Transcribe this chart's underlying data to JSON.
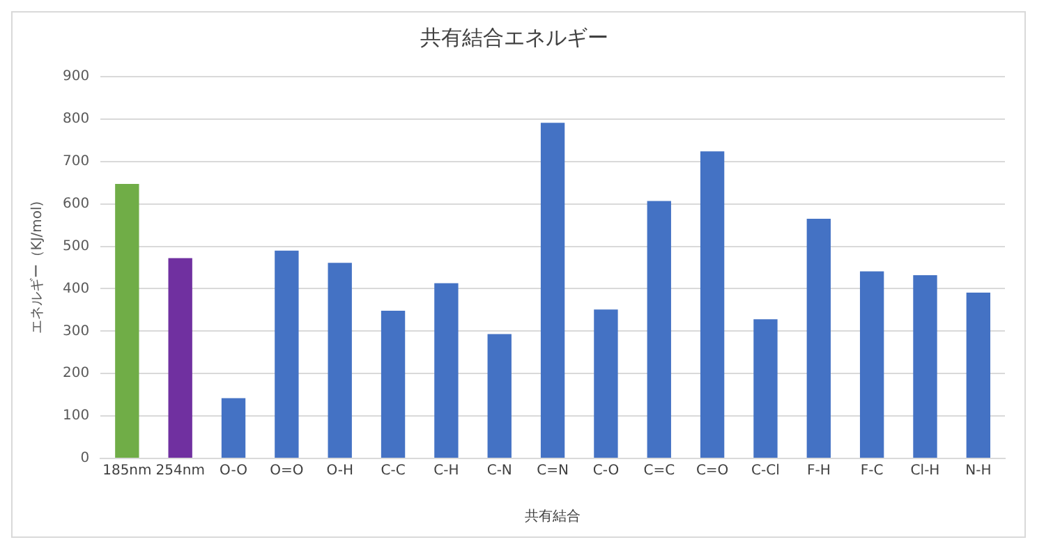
{
  "chart_data": {
    "type": "bar",
    "title": "共有結合エネルギー",
    "xlabel": "共有結合",
    "ylabel": "エネルギー（KJ/mol)",
    "categories": [
      "185nm",
      "254nm",
      "O-O",
      "O=O",
      "O-H",
      "C-C",
      "C-H",
      "C-N",
      "C=N",
      "C-O",
      "C=C",
      "C=O",
      "C-Cl",
      "F-H",
      "F-C",
      "Cl-H",
      "N-H"
    ],
    "values": [
      647,
      472,
      142,
      490,
      461,
      348,
      413,
      293,
      791,
      351,
      607,
      724,
      328,
      565,
      441,
      432,
      391
    ],
    "colors": [
      "#70ad47",
      "#7030a0",
      "#4472c4",
      "#4472c4",
      "#4472c4",
      "#4472c4",
      "#4472c4",
      "#4472c4",
      "#4472c4",
      "#4472c4",
      "#4472c4",
      "#4472c4",
      "#4472c4",
      "#4472c4",
      "#4472c4",
      "#4472c4",
      "#4472c4"
    ],
    "ylim": [
      0,
      900
    ],
    "yticks": [
      0,
      100,
      200,
      300,
      400,
      500,
      600,
      700,
      800,
      900
    ],
    "grid": "y",
    "legend": false
  }
}
